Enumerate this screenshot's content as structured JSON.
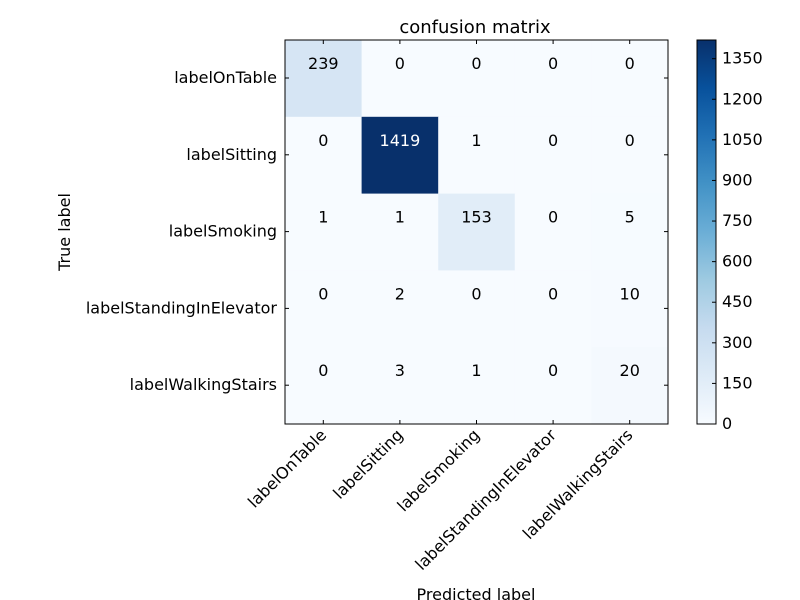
{
  "chart_data": {
    "type": "heatmap",
    "title": "confusion matrix",
    "xlabel": "Predicted label",
    "ylabel": "True label",
    "x_categories": [
      "labelOnTable",
      "labelSitting",
      "labelSmoking",
      "labelStandingInElevator",
      "labelWalkingStairs"
    ],
    "y_categories": [
      "labelOnTable",
      "labelSitting",
      "labelSmoking",
      "labelStandingInElevator",
      "labelWalkingStairs"
    ],
    "values": [
      [
        239,
        0,
        0,
        0,
        0
      ],
      [
        0,
        1419,
        1,
        0,
        0
      ],
      [
        1,
        1,
        153,
        0,
        5
      ],
      [
        0,
        2,
        0,
        0,
        10
      ],
      [
        0,
        3,
        1,
        0,
        20
      ]
    ],
    "colormap": "Blues",
    "colorbar": {
      "range": [
        0,
        1419
      ],
      "ticks": [
        0,
        150,
        300,
        450,
        600,
        750,
        900,
        1050,
        1200,
        1350
      ]
    },
    "grid": false
  }
}
